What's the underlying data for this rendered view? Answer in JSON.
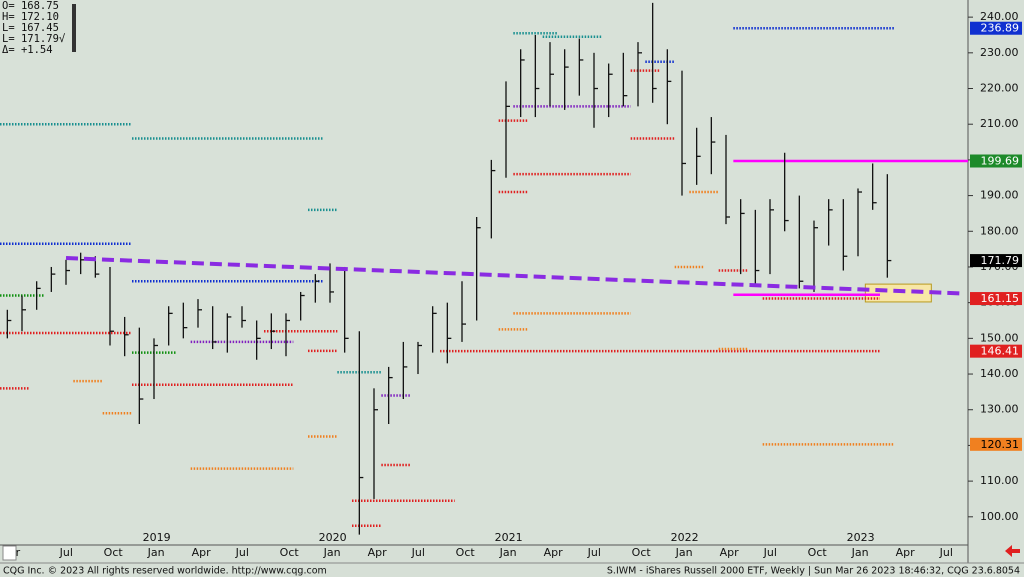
{
  "chart_data": {
    "type": "ohlc",
    "info": [
      "O= 168.75",
      "H= 172.10",
      "L= 167.45",
      "L= 171.79√",
      "Δ=  +1.54"
    ],
    "footer_left": "CQG Inc. © 2023 All rights reserved worldwide. http://www.cqg.com",
    "footer_right": "S.IWM - iShares Russell 2000 ETF, Weekly | Sun Mar 26 2023 18:46:32, CQG 23.6.8054",
    "categories": [
      "2018-03",
      "2018-04",
      "2018-05",
      "2018-06",
      "2018-07",
      "2018-08",
      "2018-09",
      "2018-10",
      "2018-11",
      "2018-12",
      "2019-01",
      "2019-02",
      "2019-03",
      "2019-04",
      "2019-05",
      "2019-06",
      "2019-07",
      "2019-08",
      "2019-09",
      "2019-10",
      "2019-11",
      "2019-12",
      "2020-01",
      "2020-02",
      "2020-03",
      "2020-04",
      "2020-05",
      "2020-06",
      "2020-07",
      "2020-08",
      "2020-09",
      "2020-10",
      "2020-11",
      "2020-12",
      "2021-01",
      "2021-02",
      "2021-03",
      "2021-04",
      "2021-05",
      "2021-06",
      "2021-07",
      "2021-08",
      "2021-09",
      "2021-10",
      "2021-11",
      "2021-12",
      "2022-01",
      "2022-02",
      "2022-03",
      "2022-04",
      "2022-05",
      "2022-06",
      "2022-07",
      "2022-08",
      "2022-09",
      "2022-10",
      "2022-11",
      "2022-12",
      "2023-01",
      "2023-02",
      "2023-03",
      "2023-04",
      "2023-05",
      "2023-06",
      "2023-07",
      "2023-08"
    ],
    "high": [
      158,
      162,
      166,
      170,
      172,
      174,
      173,
      170,
      156,
      153,
      150,
      159,
      160,
      161,
      159,
      157,
      159,
      155,
      157,
      157,
      163,
      168,
      171,
      170,
      152,
      136,
      142,
      149,
      149,
      159,
      160,
      166,
      184,
      200,
      222,
      231,
      235,
      233,
      231,
      234,
      230,
      227,
      230,
      233,
      244,
      231,
      225,
      209,
      212,
      207,
      189,
      186,
      189,
      202,
      190,
      183,
      189,
      189,
      192,
      199,
      196,
      null,
      null,
      null,
      null,
      null
    ],
    "low": [
      150,
      152,
      158,
      163,
      165,
      168,
      167,
      148,
      145,
      126,
      133,
      148,
      150,
      153,
      147,
      146,
      153,
      144,
      147,
      145,
      155,
      160,
      160,
      146,
      95,
      105,
      126,
      133,
      140,
      146,
      143,
      149,
      155,
      178,
      195,
      212,
      212,
      215,
      214,
      218,
      209,
      212,
      215,
      215,
      216,
      210,
      190,
      193,
      196,
      182,
      168,
      165,
      168,
      180,
      164,
      163,
      176,
      169,
      173,
      186,
      167,
      null,
      null,
      null,
      null,
      null
    ],
    "close": [
      155,
      158,
      164,
      168,
      169,
      172,
      168,
      152,
      151,
      133,
      148,
      157,
      153,
      158,
      149,
      156,
      155,
      150,
      152,
      155,
      162,
      166,
      163,
      150,
      111,
      130,
      139,
      142,
      148,
      157,
      150,
      154,
      181,
      197,
      215,
      228,
      220,
      224,
      226,
      228,
      220,
      224,
      218,
      230,
      220,
      222,
      199,
      201,
      205,
      184,
      185,
      169,
      186,
      183,
      166,
      181,
      186,
      173,
      191,
      188,
      171.79,
      null,
      null,
      null,
      null,
      null
    ],
    "bar_color": "#111111",
    "ylim": [
      92.1,
      244.8
    ],
    "yticks": [
      {
        "value": 100,
        "label": "100.00"
      },
      {
        "value": 110,
        "label": "110.00"
      },
      {
        "value": 120,
        "label": "120.00"
      },
      {
        "value": 130,
        "label": "130.00"
      },
      {
        "value": 140,
        "label": "140.00"
      },
      {
        "value": 150,
        "label": "150.00"
      },
      {
        "value": 160,
        "label": "160.00"
      },
      {
        "value": 170,
        "label": "170.00"
      },
      {
        "value": 180,
        "label": "180.00"
      },
      {
        "value": 190,
        "label": "190.00"
      },
      {
        "value": 200,
        "label": "200.00"
      },
      {
        "value": 210,
        "label": "210.00"
      },
      {
        "value": 220,
        "label": "220.00"
      },
      {
        "value": 230,
        "label": "230.00"
      },
      {
        "value": 240,
        "label": "240.00"
      }
    ],
    "xticks": [
      {
        "value": "2018-04",
        "label": "r"
      },
      {
        "value": "2018-07",
        "label": "Jul"
      },
      {
        "value": "2018-10",
        "label": "Oct"
      },
      {
        "value": "2019-01",
        "label": "Jan"
      },
      {
        "value": "2019-04",
        "label": "Apr"
      },
      {
        "value": "2019-07",
        "label": "Jul"
      },
      {
        "value": "2019-10",
        "label": "Oct"
      },
      {
        "value": "2020-01",
        "label": "Jan"
      },
      {
        "value": "2020-04",
        "label": "Apr"
      },
      {
        "value": "2020-07",
        "label": "Jul"
      },
      {
        "value": "2020-10",
        "label": "Oct"
      },
      {
        "value": "2021-01",
        "label": "Jan"
      },
      {
        "value": "2021-04",
        "label": "Apr"
      },
      {
        "value": "2021-07",
        "label": "Jul"
      },
      {
        "value": "2021-10",
        "label": "Oct"
      },
      {
        "value": "2022-01",
        "label": "Jan"
      },
      {
        "value": "2022-04",
        "label": "Apr"
      },
      {
        "value": "2022-07",
        "label": "Jul"
      },
      {
        "value": "2022-10",
        "label": "Oct"
      },
      {
        "value": "2023-01",
        "label": "Jan"
      },
      {
        "value": "2023-04",
        "label": "Apr"
      },
      {
        "value": "2023-07",
        "label": "Jul"
      }
    ],
    "year_labels": [
      {
        "value": "2019-01",
        "label": "2019"
      },
      {
        "value": "2020-01",
        "label": "2020"
      },
      {
        "value": "2021-01",
        "label": "2021"
      },
      {
        "value": "2022-01",
        "label": "2022"
      },
      {
        "value": "2023-01",
        "label": "2023"
      }
    ],
    "grid": false,
    "levels": [
      {
        "start": "2018-03",
        "end": "2018-11",
        "value": 210,
        "color": "#1a9090"
      },
      {
        "start": "2018-12",
        "end": "2019-12",
        "value": 206,
        "color": "#1a9090"
      },
      {
        "start": "2018-03",
        "end": "2018-11",
        "value": 176.5,
        "color": "#1030d0"
      },
      {
        "start": "2018-12",
        "end": "2019-12",
        "value": 166,
        "color": "#1030d0"
      },
      {
        "start": "2018-03",
        "end": "2018-05",
        "value": 162,
        "color": "#109010"
      },
      {
        "start": "2018-03",
        "end": "2018-11",
        "value": 151.5,
        "color": "#e02020"
      },
      {
        "start": "2018-08",
        "end": "2018-09",
        "value": 138,
        "color": "#f08020"
      },
      {
        "start": "2018-03",
        "end": "2018-04",
        "value": 136,
        "color": "#e02020"
      },
      {
        "start": "2018-10",
        "end": "2018-11",
        "value": 129,
        "color": "#f08020"
      },
      {
        "start": "2018-12",
        "end": "2019-02",
        "value": 146,
        "color": "#109010"
      },
      {
        "start": "2018-12",
        "end": "2019-10",
        "value": 137,
        "color": "#e02020"
      },
      {
        "start": "2019-04",
        "end": "2019-10",
        "value": 149,
        "color": "#8020c0"
      },
      {
        "start": "2019-09",
        "end": "2020-01",
        "value": 152,
        "color": "#e02020"
      },
      {
        "start": "2019-04",
        "end": "2019-10",
        "value": 113.5,
        "color": "#f08020"
      },
      {
        "start": "2019-12",
        "end": "2020-01",
        "value": 186,
        "color": "#1a9090"
      },
      {
        "start": "2019-12",
        "end": "2020-01",
        "value": 146.5,
        "color": "#e02020"
      },
      {
        "start": "2020-02",
        "end": "2020-04",
        "value": 140.5,
        "color": "#1a9090"
      },
      {
        "start": "2019-12",
        "end": "2020-01",
        "value": 122.5,
        "color": "#f08020"
      },
      {
        "start": "2020-05",
        "end": "2020-06",
        "value": 114.5,
        "color": "#e02020"
      },
      {
        "start": "2020-03",
        "end": "2020-09",
        "value": 104.5,
        "color": "#e02020"
      },
      {
        "start": "2020-03",
        "end": "2020-04",
        "value": 97.5,
        "color": "#e02020"
      },
      {
        "start": "2020-05",
        "end": "2020-06",
        "value": 134,
        "color": "#8020c0"
      },
      {
        "start": "2020-09",
        "end": "2023-02",
        "value": 146.41,
        "color": "#e02020"
      },
      {
        "start": "2021-02",
        "end": "2021-09",
        "value": 157,
        "color": "#f08020"
      },
      {
        "start": "2021-01",
        "end": "2021-02",
        "value": 152.5,
        "color": "#f08020"
      },
      {
        "start": "2021-01",
        "end": "2021-02",
        "value": 191,
        "color": "#e02020"
      },
      {
        "start": "2021-02",
        "end": "2021-09",
        "value": 196,
        "color": "#e02020"
      },
      {
        "start": "2021-02",
        "end": "2021-09",
        "value": 215,
        "color": "#8020c0"
      },
      {
        "start": "2021-01",
        "end": "2021-02",
        "value": 211,
        "color": "#e02020"
      },
      {
        "start": "2021-02",
        "end": "2021-04",
        "value": 235.5,
        "color": "#1a9090"
      },
      {
        "start": "2021-04",
        "end": "2021-07",
        "value": 234.5,
        "color": "#1a9090"
      },
      {
        "start": "2021-10",
        "end": "2021-11",
        "value": 225,
        "color": "#e02020"
      },
      {
        "start": "2021-10",
        "end": "2021-12",
        "value": 206,
        "color": "#e02020"
      },
      {
        "start": "2021-11",
        "end": "2021-12",
        "value": 227.5,
        "color": "#1030d0"
      },
      {
        "start": "2022-01",
        "end": "2022-02",
        "value": 170,
        "color": "#f08020"
      },
      {
        "start": "2022-02",
        "end": "2022-03",
        "value": 191,
        "color": "#f08020"
      },
      {
        "start": "2022-04",
        "end": "2022-05",
        "value": 169,
        "color": "#e02020"
      },
      {
        "start": "2022-04",
        "end": "2022-05",
        "value": 147,
        "color": "#f08020"
      },
      {
        "start": "2022-05",
        "end": "2023-03",
        "value": 236.89,
        "color": "#1030d0"
      },
      {
        "start": "2022-07",
        "end": "2023-02",
        "value": 161.15,
        "color": "#e02020"
      },
      {
        "start": "2022-07",
        "end": "2023-03",
        "value": 120.31,
        "color": "#f08020"
      }
    ],
    "lines": [
      {
        "start": "2022-05",
        "end": "2023-08",
        "value": 199.69,
        "color": "#ff00ff"
      },
      {
        "start": "2022-05",
        "end": "2023-02",
        "value": 162.2,
        "color": "#ff00ff"
      }
    ],
    "trend": {
      "start": "2018-07",
      "end": "2023-08",
      "values": [
        172.5,
        162.6
      ],
      "color": "#8a2be2"
    },
    "zone": {
      "start": "2023-02",
      "end": "2023-06",
      "top": 165.2,
      "bottom": 160.2,
      "color": "#f7e7a6"
    },
    "price_labels": [
      {
        "value": 236.89,
        "color": "#1030d0",
        "text_color": "#ffffff"
      },
      {
        "value": 199.69,
        "color": "#1d8a2a",
        "text_color": "#ffffff"
      },
      {
        "value": 171.79,
        "color": "#000000",
        "text_color": "#ffffff"
      },
      {
        "value": 161.15,
        "color": "#e02020",
        "text_color": "#ffffff"
      },
      {
        "value": 146.41,
        "color": "#e02020",
        "text_color": "#ffffff"
      },
      {
        "value": 120.31,
        "color": "#f08020",
        "text_color": "#000000"
      }
    ]
  }
}
